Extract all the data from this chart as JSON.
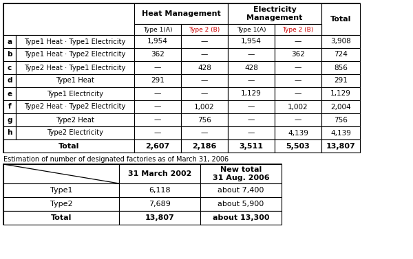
{
  "title_note": "Estimation of number of designated factories as of March 31, 2006",
  "main_table": {
    "rows": [
      [
        "a",
        "Type1 Heat · Type1 Electricity",
        "1,954",
        "—",
        "1,954",
        "—",
        "3,908"
      ],
      [
        "b",
        "Type1 Heat · Type2 Electricity",
        "362",
        "—",
        "—",
        "362",
        "724"
      ],
      [
        "c",
        "Type2 Heat · Type1 Electricity",
        "—",
        "428",
        "428",
        "—",
        "856"
      ],
      [
        "d",
        "Type1 Heat",
        "291",
        "—",
        "—",
        "—",
        "291"
      ],
      [
        "e",
        "Type1 Electricity",
        "—",
        "—",
        "1,129",
        "—",
        "1,129"
      ],
      [
        "f",
        "Type2 Heat · Type2 Electricity",
        "—",
        "1,002",
        "—",
        "1,002",
        "2,004"
      ],
      [
        "g",
        "Type2 Heat",
        "—",
        "756",
        "—",
        "—",
        "756"
      ],
      [
        "h",
        "Type2 Electricity",
        "—",
        "—",
        "—",
        "4,139",
        "4,139"
      ],
      [
        "Total",
        "",
        "2,607",
        "2,186",
        "3,511",
        "5,503",
        "13,807"
      ]
    ]
  },
  "sub_table": {
    "col_headers": [
      "",
      "31 March 2002",
      "New total\n31 Aug. 2006"
    ],
    "rows": [
      [
        "Type1",
        "6,118",
        "about 7,400"
      ],
      [
        "Type2",
        "7,689",
        "about 5,900"
      ],
      [
        "Total",
        "13,807",
        "about 13,300"
      ]
    ]
  },
  "red_text": "#cc0000"
}
